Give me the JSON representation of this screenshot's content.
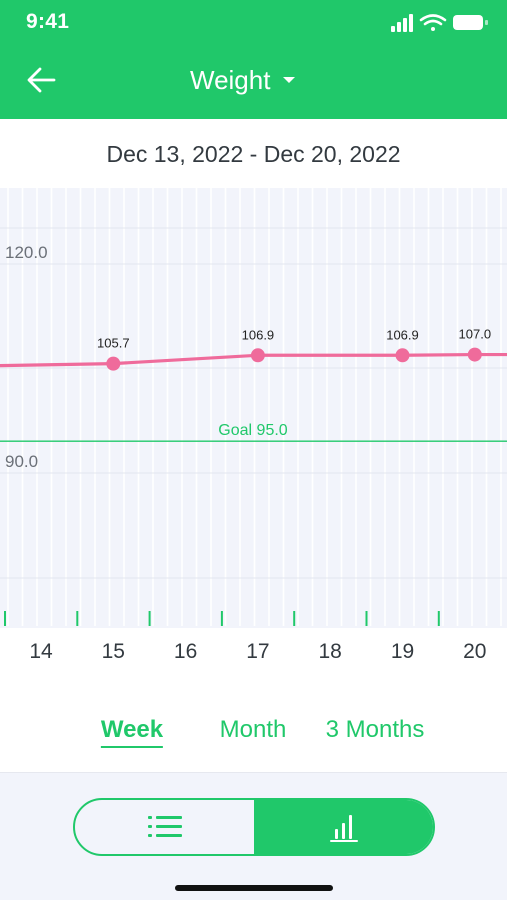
{
  "status_bar": {
    "time": "9:41"
  },
  "header": {
    "title": "Weight"
  },
  "date_range": "Dec 13, 2022 - Dec 20, 2022",
  "goal_label": "Goal 95.0",
  "chart_data": {
    "type": "line",
    "x": [
      15,
      17,
      19,
      20
    ],
    "values": [
      105.7,
      106.9,
      106.9,
      107.0
    ],
    "point_labels": [
      "105.7",
      "106.9",
      "106.9",
      "107.0"
    ],
    "y_ticks": [
      "120.0",
      "90.0"
    ],
    "x_tick_labels": [
      "14",
      "15",
      "16",
      "17",
      "18",
      "19",
      "20"
    ],
    "goal": 95.0,
    "line_color": "#ef6b9b",
    "goal_color": "#20c86a"
  },
  "range_tabs": [
    {
      "label": "Week",
      "active": true
    },
    {
      "label": "Month",
      "active": false
    },
    {
      "label": "3 Months",
      "active": false
    }
  ],
  "view_toggle": {
    "active": "chart"
  },
  "colors": {
    "accent": "#20c86a",
    "line": "#ef6b9b"
  }
}
